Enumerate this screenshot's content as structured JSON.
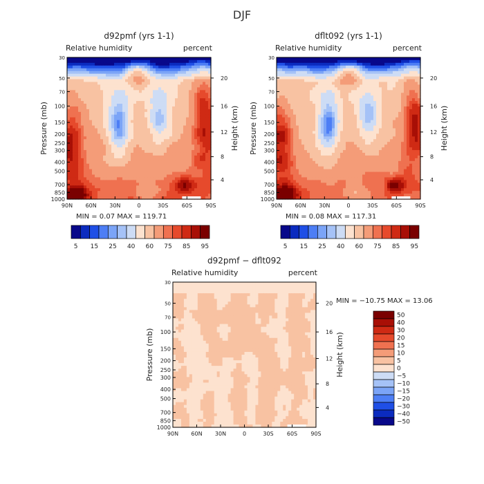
{
  "figure": {
    "title": "DJF"
  },
  "chart_data": [
    {
      "type": "heatmap",
      "title": "d92pmf (yrs 1-1)",
      "subtitle_left": "Relative humidity",
      "subtitle_right": "percent",
      "ylabel": "Pressure (mb)",
      "ylabel_right": "Height (km)",
      "x_ticks": [
        "90N",
        "60N",
        "30N",
        "0",
        "30S",
        "60S",
        "90S"
      ],
      "y_ticks": [
        "30",
        "50",
        "70",
        "100",
        "150",
        "200",
        "250",
        "300",
        "400",
        "500",
        "700",
        "850",
        "1000"
      ],
      "height_ticks": [
        "20",
        "16",
        "12",
        "8",
        "4"
      ],
      "stats_text": "MIN =    0.07   MAX =  119.71",
      "min": 0.07,
      "max": 119.71,
      "colorbar_labels": [
        "5",
        "15",
        "25",
        "40",
        "60",
        "75",
        "85",
        "95"
      ],
      "colorbar_colors": [
        "#08088a",
        "#0b2bbf",
        "#1f4fe6",
        "#4d7ef5",
        "#7ba4f7",
        "#a5c2f7",
        "#cddcf5",
        "#fde2cf",
        "#f8c2a2",
        "#f49c78",
        "#ef7150",
        "#e64a2c",
        "#cf2a14",
        "#a80f06",
        "#7a0000"
      ],
      "grid": "none"
    },
    {
      "type": "heatmap",
      "title": "dflt092 (yrs 1-1)",
      "subtitle_left": "Relative humidity",
      "subtitle_right": "percent",
      "ylabel": "Pressure (mb)",
      "ylabel_right": "Height (km)",
      "x_ticks": [
        "90N",
        "60N",
        "30N",
        "0",
        "30S",
        "60S",
        "90S"
      ],
      "y_ticks": [
        "30",
        "50",
        "70",
        "100",
        "150",
        "200",
        "250",
        "300",
        "400",
        "500",
        "700",
        "850",
        "1000"
      ],
      "height_ticks": [
        "20",
        "16",
        "12",
        "8",
        "4"
      ],
      "stats_text": "MIN =    0.08   MAX =  117.31",
      "min": 0.08,
      "max": 117.31,
      "colorbar_labels": [
        "5",
        "15",
        "25",
        "40",
        "60",
        "75",
        "85",
        "95"
      ],
      "colorbar_colors": [
        "#08088a",
        "#0b2bbf",
        "#1f4fe6",
        "#4d7ef5",
        "#7ba4f7",
        "#a5c2f7",
        "#cddcf5",
        "#fde2cf",
        "#f8c2a2",
        "#f49c78",
        "#ef7150",
        "#e64a2c",
        "#cf2a14",
        "#a80f06",
        "#7a0000"
      ],
      "grid": "none"
    },
    {
      "type": "heatmap",
      "title": "d92pmf − dflt092",
      "subtitle_left": "Relative humidity",
      "subtitle_right": "percent",
      "ylabel": "Pressure (mb)",
      "ylabel_right": "Height (km)",
      "x_ticks": [
        "90N",
        "60N",
        "30N",
        "0",
        "30S",
        "60S",
        "90S"
      ],
      "y_ticks": [
        "30",
        "50",
        "70",
        "100",
        "150",
        "200",
        "250",
        "300",
        "400",
        "500",
        "700",
        "850",
        "1000"
      ],
      "height_ticks": [
        "20",
        "16",
        "12",
        "8",
        "4"
      ],
      "stats_text": "MIN = −10.75   MAX =   13.06",
      "min": -10.75,
      "max": 13.06,
      "colorbar_labels": [
        "50",
        "40",
        "30",
        "20",
        "15",
        "10",
        "5",
        "0",
        "−5",
        "−10",
        "−15",
        "−20",
        "−30",
        "−40",
        "−50"
      ],
      "colorbar_colors": [
        "#7a0000",
        "#a80f06",
        "#cf2a14",
        "#e64a2c",
        "#ef7150",
        "#f49c78",
        "#f8c2a2",
        "#fde2cf",
        "#cddcf5",
        "#a5c2f7",
        "#7ba4f7",
        "#4d7ef5",
        "#1f4fe6",
        "#0b2bbf",
        "#08088a"
      ],
      "grid": "none"
    }
  ]
}
